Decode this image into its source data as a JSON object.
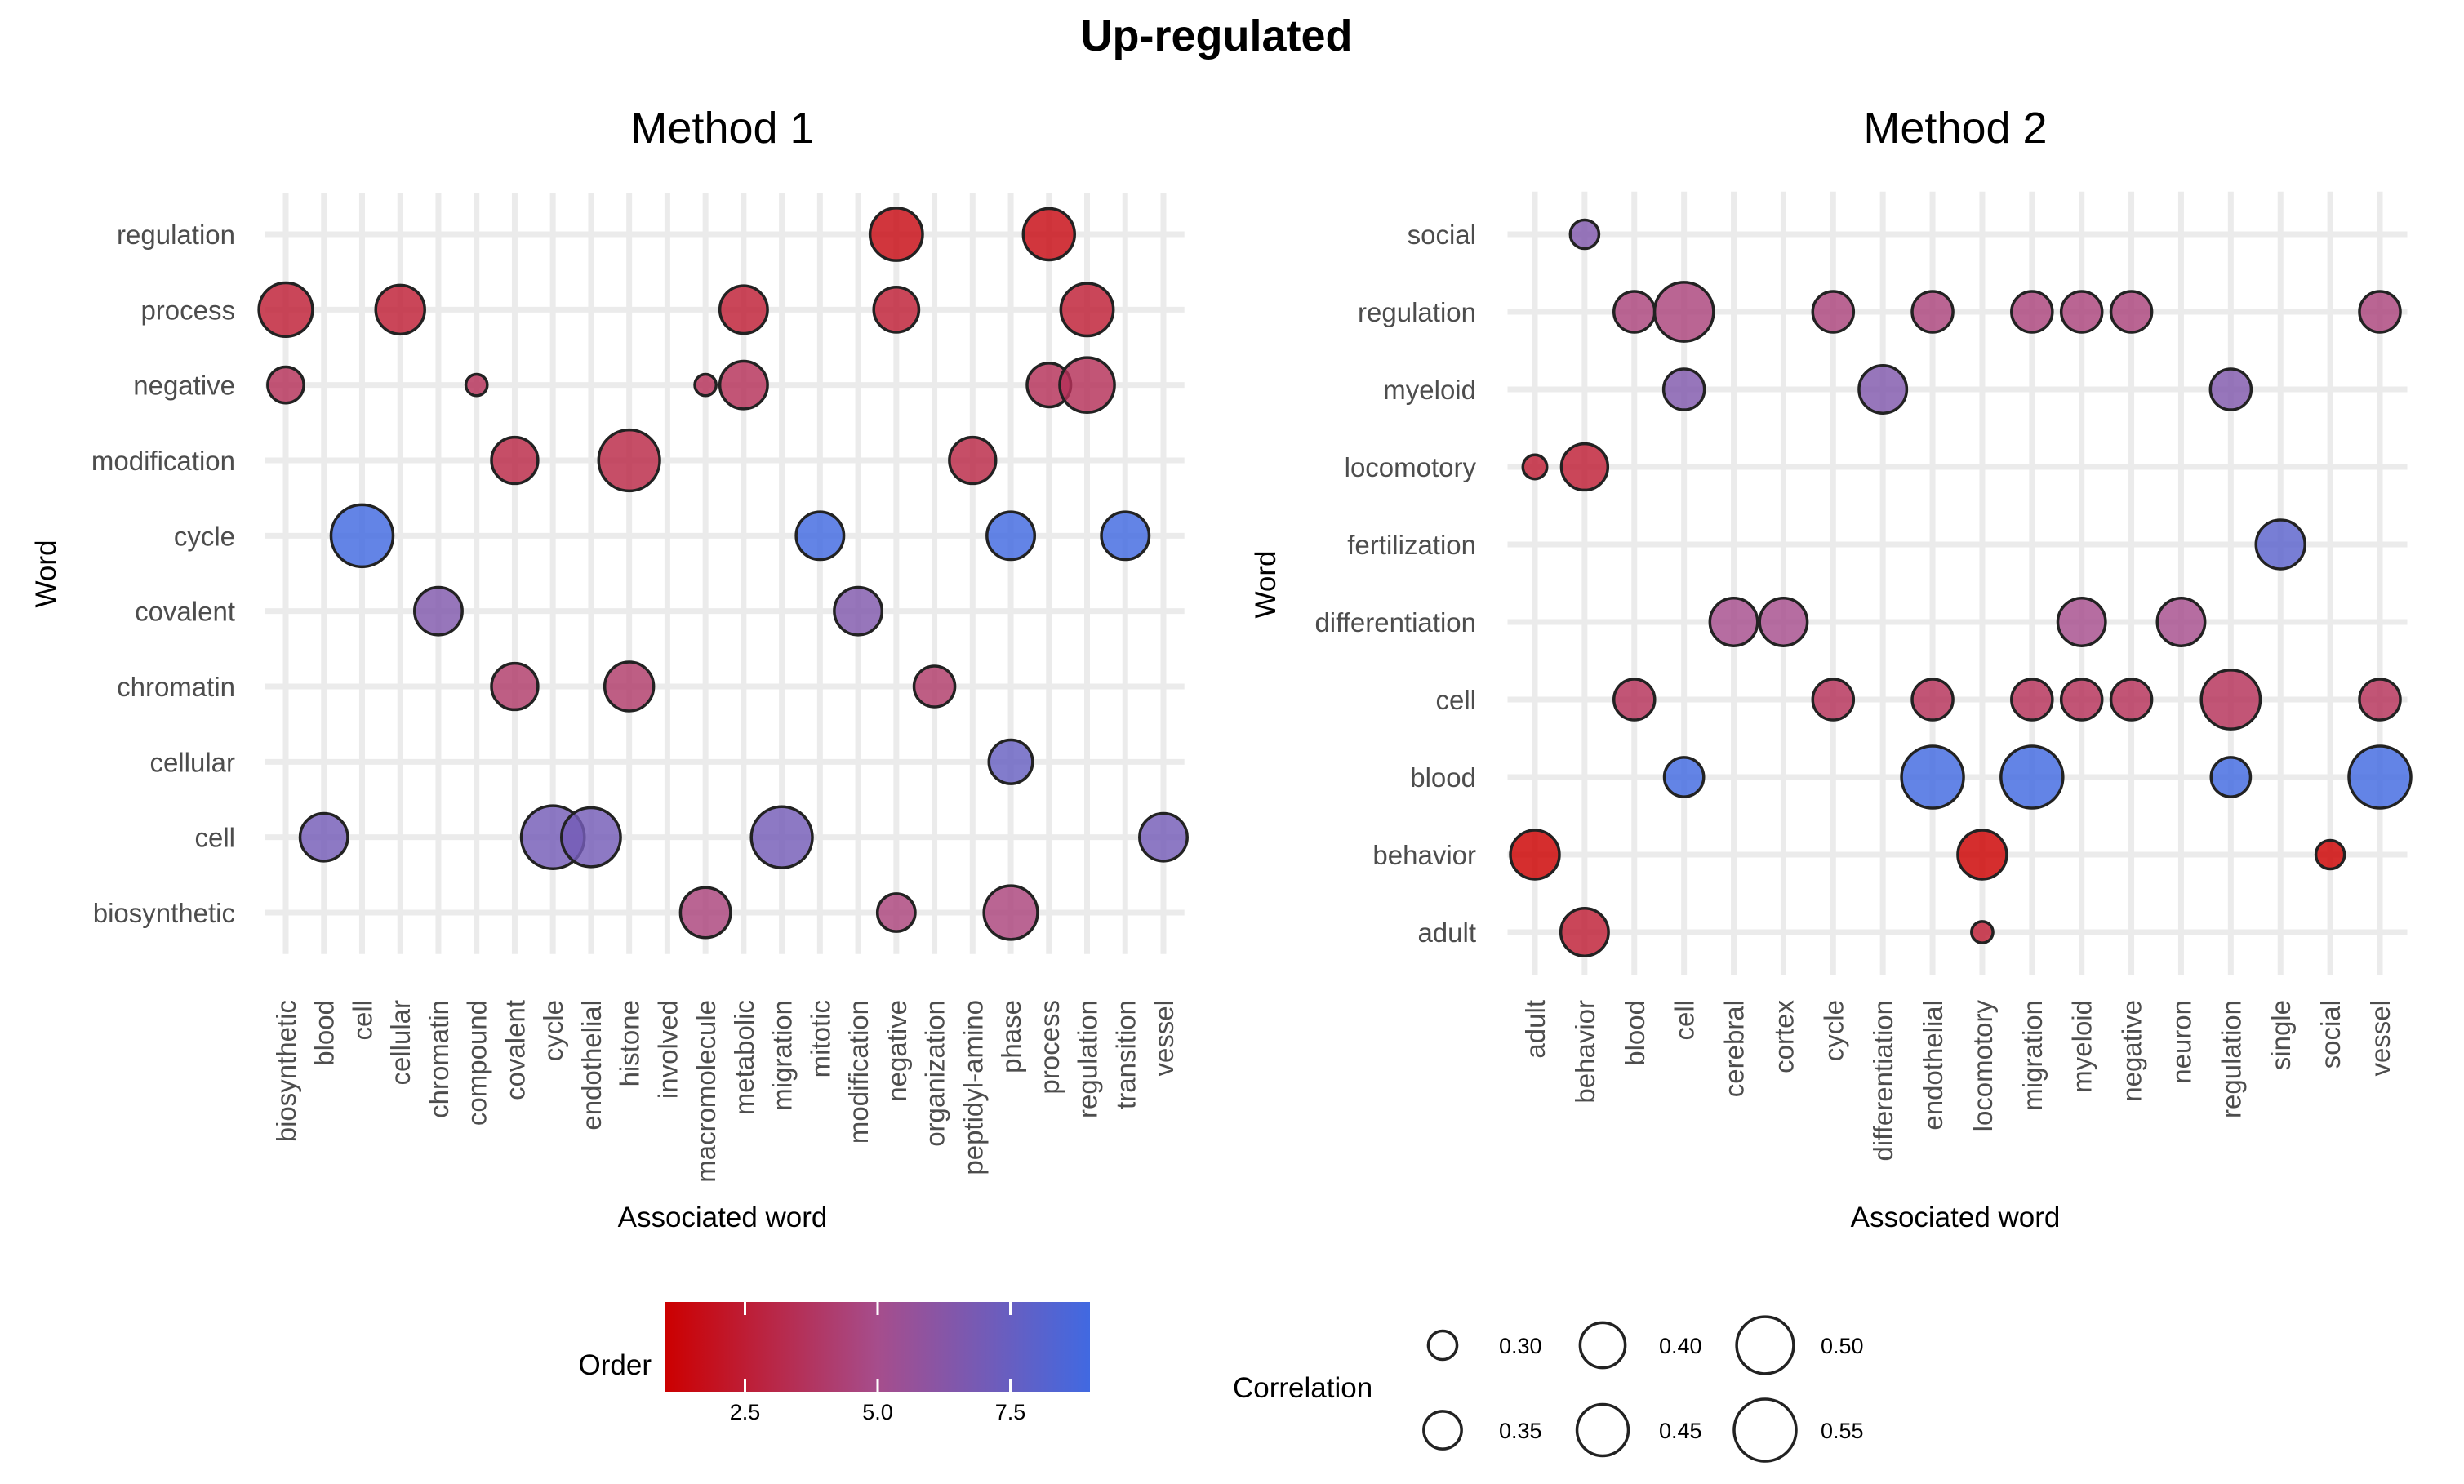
{
  "figure_title": "Up-regulated",
  "colors": {
    "low": "#cc0000",
    "mid": "#a64d8c",
    "high": "#4169e1",
    "grid": "#ebebeb"
  },
  "chart_data": [
    {
      "type": "scatter",
      "title": "Method 1",
      "xlabel": "Associated word",
      "ylabel": "Word",
      "categories_x": [
        "biosynthetic",
        "blood",
        "cell",
        "cellular",
        "chromatin",
        "compound",
        "covalent",
        "cycle",
        "endothelial",
        "histone",
        "involved",
        "macromolecule",
        "metabolic",
        "migration",
        "mitotic",
        "modification",
        "negative",
        "organization",
        "peptidyl-amino",
        "phase",
        "process",
        "regulation",
        "transition",
        "vessel"
      ],
      "categories_y": [
        "biosynthetic",
        "cell",
        "cellular",
        "chromatin",
        "covalent",
        "cycle",
        "modification",
        "negative",
        "process",
        "regulation"
      ],
      "points": [
        {
          "x": "negative",
          "y": "regulation",
          "order": 1.5,
          "correlation": 0.46
        },
        {
          "x": "process",
          "y": "regulation",
          "order": 1.5,
          "correlation": 0.45
        },
        {
          "x": "biosynthetic",
          "y": "process",
          "order": 2.5,
          "correlation": 0.47
        },
        {
          "x": "cellular",
          "y": "process",
          "order": 2.5,
          "correlation": 0.43
        },
        {
          "x": "metabolic",
          "y": "process",
          "order": 2.5,
          "correlation": 0.42
        },
        {
          "x": "negative",
          "y": "process",
          "order": 2.5,
          "correlation": 0.4
        },
        {
          "x": "regulation",
          "y": "process",
          "order": 2.5,
          "correlation": 0.46
        },
        {
          "x": "biosynthetic",
          "y": "negative",
          "order": 3.5,
          "correlation": 0.34
        },
        {
          "x": "compound",
          "y": "negative",
          "order": 3.5,
          "correlation": 0.27
        },
        {
          "x": "macromolecule",
          "y": "negative",
          "order": 3.5,
          "correlation": 0.27
        },
        {
          "x": "metabolic",
          "y": "negative",
          "order": 3.5,
          "correlation": 0.42
        },
        {
          "x": "process",
          "y": "negative",
          "order": 3.5,
          "correlation": 0.39
        },
        {
          "x": "regulation",
          "y": "negative",
          "order": 3.5,
          "correlation": 0.48
        },
        {
          "x": "covalent",
          "y": "modification",
          "order": 3,
          "correlation": 0.41
        },
        {
          "x": "histone",
          "y": "modification",
          "order": 3,
          "correlation": 0.54
        },
        {
          "x": "peptidyl-amino",
          "y": "modification",
          "order": 3,
          "correlation": 0.41
        },
        {
          "x": "cell",
          "y": "cycle",
          "order": 9,
          "correlation": 0.55
        },
        {
          "x": "mitotic",
          "y": "cycle",
          "order": 9,
          "correlation": 0.42
        },
        {
          "x": "phase",
          "y": "cycle",
          "order": 9,
          "correlation": 0.42
        },
        {
          "x": "transition",
          "y": "cycle",
          "order": 9,
          "correlation": 0.42
        },
        {
          "x": "chromatin",
          "y": "covalent",
          "order": 6.5,
          "correlation": 0.42
        },
        {
          "x": "modification",
          "y": "covalent",
          "order": 6.5,
          "correlation": 0.42
        },
        {
          "x": "covalent",
          "y": "chromatin",
          "order": 4,
          "correlation": 0.41
        },
        {
          "x": "histone",
          "y": "chromatin",
          "order": 4,
          "correlation": 0.43
        },
        {
          "x": "organization",
          "y": "chromatin",
          "order": 4,
          "correlation": 0.37
        },
        {
          "x": "phase",
          "y": "cellular",
          "order": 7.5,
          "correlation": 0.39
        },
        {
          "x": "blood",
          "y": "cell",
          "order": 7,
          "correlation": 0.42
        },
        {
          "x": "cycle",
          "y": "cell",
          "order": 7,
          "correlation": 0.56
        },
        {
          "x": "endothelial",
          "y": "cell",
          "order": 7,
          "correlation": 0.52
        },
        {
          "x": "migration",
          "y": "cell",
          "order": 7,
          "correlation": 0.54
        },
        {
          "x": "vessel",
          "y": "cell",
          "order": 7,
          "correlation": 0.42
        },
        {
          "x": "macromolecule",
          "y": "biosynthetic",
          "order": 4.5,
          "correlation": 0.44
        },
        {
          "x": "negative",
          "y": "biosynthetic",
          "order": 4.5,
          "correlation": 0.35
        },
        {
          "x": "phase",
          "y": "biosynthetic",
          "order": 4.5,
          "correlation": 0.47
        }
      ]
    },
    {
      "type": "scatter",
      "title": "Method 2",
      "xlabel": "Associated word",
      "ylabel": "Word",
      "categories_x": [
        "adult",
        "behavior",
        "blood",
        "cell",
        "cerebral",
        "cortex",
        "cycle",
        "differentiation",
        "endothelial",
        "locomotory",
        "migration",
        "myeloid",
        "negative",
        "neuron",
        "regulation",
        "single",
        "social",
        "vessel"
      ],
      "categories_y": [
        "adult",
        "behavior",
        "blood",
        "cell",
        "differentiation",
        "fertilization",
        "locomotory",
        "myeloid",
        "regulation",
        "social"
      ],
      "points": [
        {
          "x": "behavior",
          "y": "social",
          "order": 6.5,
          "correlation": 0.3
        },
        {
          "x": "blood",
          "y": "regulation",
          "order": 4.5,
          "correlation": 0.37
        },
        {
          "x": "cell",
          "y": "regulation",
          "order": 4.5,
          "correlation": 0.52
        },
        {
          "x": "cycle",
          "y": "regulation",
          "order": 4.5,
          "correlation": 0.37
        },
        {
          "x": "endothelial",
          "y": "regulation",
          "order": 4.5,
          "correlation": 0.37
        },
        {
          "x": "migration",
          "y": "regulation",
          "order": 4.5,
          "correlation": 0.37
        },
        {
          "x": "myeloid",
          "y": "regulation",
          "order": 4.5,
          "correlation": 0.37
        },
        {
          "x": "negative",
          "y": "regulation",
          "order": 4.5,
          "correlation": 0.37
        },
        {
          "x": "vessel",
          "y": "regulation",
          "order": 4.5,
          "correlation": 0.37
        },
        {
          "x": "cell",
          "y": "myeloid",
          "order": 6.5,
          "correlation": 0.37
        },
        {
          "x": "differentiation",
          "y": "myeloid",
          "order": 6.5,
          "correlation": 0.42
        },
        {
          "x": "regulation",
          "y": "myeloid",
          "order": 6.5,
          "correlation": 0.37
        },
        {
          "x": "adult",
          "y": "locomotory",
          "order": 2.5,
          "correlation": 0.28
        },
        {
          "x": "behavior",
          "y": "locomotory",
          "order": 2.5,
          "correlation": 0.41
        },
        {
          "x": "single",
          "y": "fertilization",
          "order": 8,
          "correlation": 0.43
        },
        {
          "x": "cerebral",
          "y": "differentiation",
          "order": 5,
          "correlation": 0.42
        },
        {
          "x": "cortex",
          "y": "differentiation",
          "order": 5,
          "correlation": 0.42
        },
        {
          "x": "myeloid",
          "y": "differentiation",
          "order": 5,
          "correlation": 0.42
        },
        {
          "x": "neuron",
          "y": "differentiation",
          "order": 5,
          "correlation": 0.42
        },
        {
          "x": "blood",
          "y": "cell",
          "order": 3.5,
          "correlation": 0.37
        },
        {
          "x": "cycle",
          "y": "cell",
          "order": 3.5,
          "correlation": 0.37
        },
        {
          "x": "endothelial",
          "y": "cell",
          "order": 3.5,
          "correlation": 0.37
        },
        {
          "x": "migration",
          "y": "cell",
          "order": 3.5,
          "correlation": 0.37
        },
        {
          "x": "myeloid",
          "y": "cell",
          "order": 3.5,
          "correlation": 0.37
        },
        {
          "x": "negative",
          "y": "cell",
          "order": 3.5,
          "correlation": 0.37
        },
        {
          "x": "regulation",
          "y": "cell",
          "order": 3.5,
          "correlation": 0.52
        },
        {
          "x": "vessel",
          "y": "cell",
          "order": 3.5,
          "correlation": 0.37
        },
        {
          "x": "cell",
          "y": "blood",
          "order": 9,
          "correlation": 0.36
        },
        {
          "x": "endothelial",
          "y": "blood",
          "order": 9,
          "correlation": 0.55
        },
        {
          "x": "migration",
          "y": "blood",
          "order": 9,
          "correlation": 0.55
        },
        {
          "x": "regulation",
          "y": "blood",
          "order": 9,
          "correlation": 0.36
        },
        {
          "x": "vessel",
          "y": "blood",
          "order": 9,
          "correlation": 0.55
        },
        {
          "x": "adult",
          "y": "behavior",
          "order": 1,
          "correlation": 0.43
        },
        {
          "x": "locomotory",
          "y": "behavior",
          "order": 1,
          "correlation": 0.43
        },
        {
          "x": "social",
          "y": "behavior",
          "order": 1,
          "correlation": 0.3
        },
        {
          "x": "behavior",
          "y": "adult",
          "order": 2.5,
          "correlation": 0.42
        },
        {
          "x": "locomotory",
          "y": "adult",
          "order": 2.5,
          "correlation": 0.27
        }
      ]
    }
  ],
  "legend": {
    "color": {
      "title": "Order",
      "range": [
        1,
        9
      ],
      "ticks": [
        2.5,
        5.0,
        7.5
      ],
      "tick_labels": [
        "2.5",
        "5.0",
        "7.5"
      ]
    },
    "size": {
      "title": "Correlation",
      "entries": [
        {
          "value": 0.3,
          "label": "0.30"
        },
        {
          "value": 0.35,
          "label": "0.35"
        },
        {
          "value": 0.4,
          "label": "0.40"
        },
        {
          "value": 0.45,
          "label": "0.45"
        },
        {
          "value": 0.5,
          "label": "0.50"
        },
        {
          "value": 0.55,
          "label": "0.55"
        }
      ]
    }
  }
}
